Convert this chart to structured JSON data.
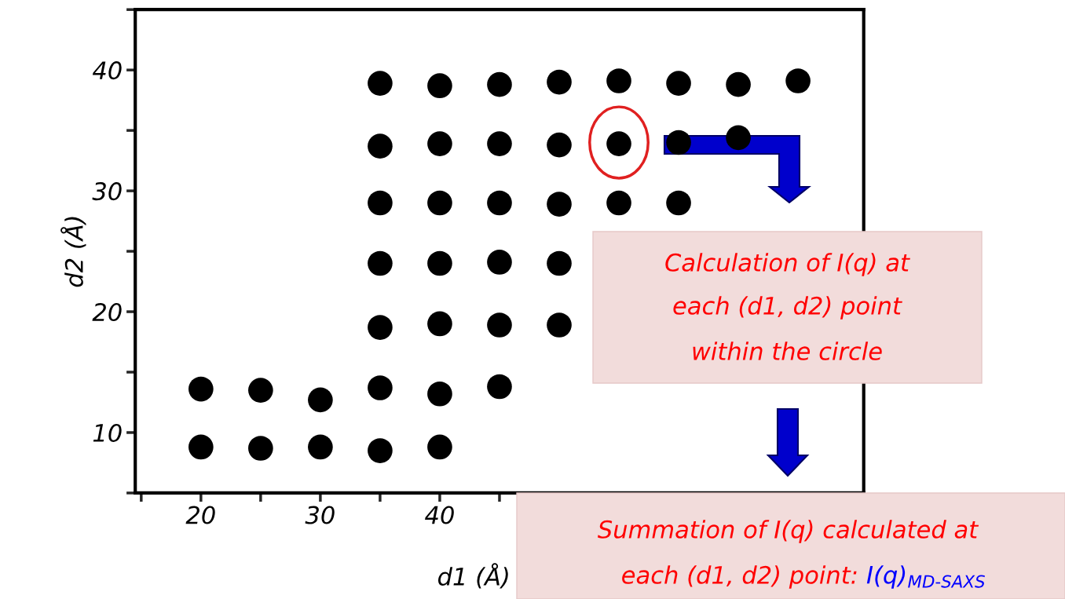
{
  "chart_data": {
    "type": "scatter",
    "xlabel": "d1 (Å)",
    "ylabel": "d2 (Å)",
    "x": [
      35,
      40,
      45,
      50,
      55,
      60,
      65,
      70,
      35,
      40,
      45,
      50,
      55,
      60,
      65,
      35,
      40,
      45,
      50,
      55,
      60,
      35,
      40,
      45,
      50,
      35,
      40,
      45,
      50,
      20,
      25,
      30,
      35,
      40,
      45,
      20,
      25,
      30,
      35,
      40
    ],
    "values": [
      38.9,
      38.7,
      38.8,
      39.0,
      39.1,
      38.9,
      38.8,
      39.1,
      33.7,
      33.9,
      33.9,
      33.8,
      33.9,
      34.0,
      34.4,
      29.0,
      29.0,
      29.0,
      28.9,
      29.0,
      29.0,
      24.0,
      24.0,
      24.1,
      24.0,
      18.7,
      19.0,
      18.9,
      18.9,
      13.6,
      13.5,
      12.7,
      13.7,
      13.2,
      13.8,
      8.8,
      8.7,
      8.8,
      8.5,
      8.8
    ],
    "color": "#000000",
    "marker": "circle",
    "grid": false,
    "xlim": [
      14.5,
      75.5
    ],
    "ylim": [
      5,
      45
    ],
    "xticks": [
      {
        "value": 15,
        "label": null
      },
      20,
      {
        "value": 25,
        "label": null
      },
      30,
      {
        "value": 35,
        "label": null
      },
      40,
      {
        "value": 45,
        "label": null
      },
      {
        "value": 50,
        "label": null
      },
      {
        "value": 55,
        "label": null
      },
      {
        "value": 60,
        "label": null
      },
      {
        "value": 65,
        "label": null
      },
      {
        "value": 70,
        "label": null
      },
      {
        "value": 75,
        "label": null
      }
    ],
    "yticks": [
      {
        "value": 5,
        "label": null
      },
      10,
      {
        "value": 15,
        "label": null
      },
      20,
      {
        "value": 25,
        "label": null
      },
      30,
      {
        "value": 35,
        "label": null
      },
      40,
      {
        "value": 45,
        "label": null
      }
    ],
    "annotations": [
      "Calculation of I(q) at",
      "each (d1, d2) point",
      "within the circle",
      "Summation of I(q) calculated at",
      "each (d1, d2) point:",
      "I(q)$_{MD-SAXS}$"
    ]
  }
}
